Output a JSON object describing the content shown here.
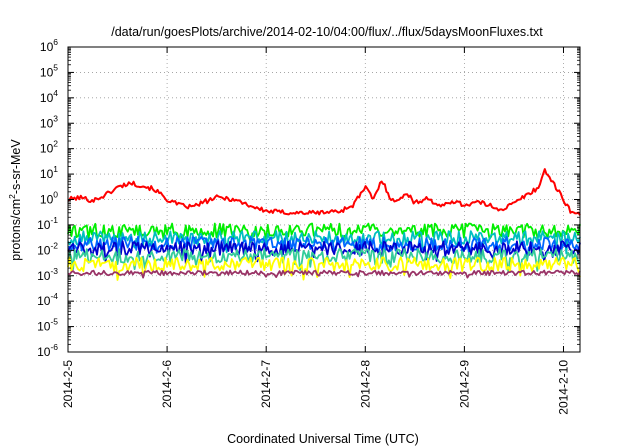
{
  "chart_data": {
    "type": "line",
    "title": "/data/run/goesPlots/archive/2014-02-10/04:00/flux/../flux/5daysMoonFluxes.txt",
    "xlabel": "Coordinated Universal Time (UTC)",
    "ylabel": "protons/cm²-s-sr-MeV",
    "ylabel_parts": {
      "before": "protons/cm",
      "sup": "2",
      "after": "-s-sr-MeV"
    },
    "yscale": "log",
    "ylim_exp": [
      -6,
      6
    ],
    "y_tick_labels": [
      {
        "base": "10",
        "exp": "-6"
      },
      {
        "base": "10",
        "exp": "-5"
      },
      {
        "base": "10",
        "exp": "-4"
      },
      {
        "base": "10",
        "exp": "-3"
      },
      {
        "base": "10",
        "exp": "-2"
      },
      {
        "base": "10",
        "exp": "-1"
      },
      {
        "base": "10",
        "exp": "0"
      },
      {
        "base": "10",
        "exp": "1"
      },
      {
        "base": "10",
        "exp": "2"
      },
      {
        "base": "10",
        "exp": "3"
      },
      {
        "base": "10",
        "exp": "4"
      },
      {
        "base": "10",
        "exp": "5"
      },
      {
        "base": "10",
        "exp": "6"
      }
    ],
    "x_ticks": [
      "2014-2-5",
      "2014-2-6",
      "2014-2-7",
      "2014-2-8",
      "2014-2-9",
      "2014-2-10"
    ],
    "xlim": [
      "2014-02-05T00:00",
      "2014-02-10T04:00"
    ],
    "grid": true,
    "series": [
      {
        "color": "#ff0000",
        "points": [
          [
            "2014-02-05T00:00",
            1.0
          ],
          [
            "2014-02-05T03:00",
            1.2
          ],
          [
            "2014-02-05T06:00",
            0.9
          ],
          [
            "2014-02-05T09:00",
            1.5
          ],
          [
            "2014-02-05T12:00",
            3.0
          ],
          [
            "2014-02-05T15:00",
            4.5
          ],
          [
            "2014-02-05T18:00",
            3.5
          ],
          [
            "2014-02-05T21:00",
            2.5
          ],
          [
            "2014-02-06T00:00",
            1.0
          ],
          [
            "2014-02-06T03:00",
            0.6
          ],
          [
            "2014-02-06T06:00",
            0.5
          ],
          [
            "2014-02-06T09:00",
            0.8
          ],
          [
            "2014-02-06T12:00",
            1.2
          ],
          [
            "2014-02-06T15:00",
            1.1
          ],
          [
            "2014-02-06T18:00",
            0.8
          ],
          [
            "2014-02-06T21:00",
            0.5
          ],
          [
            "2014-02-07T00:00",
            0.35
          ],
          [
            "2014-02-07T06:00",
            0.3
          ],
          [
            "2014-02-07T12:00",
            0.3
          ],
          [
            "2014-02-07T18:00",
            0.35
          ],
          [
            "2014-02-07T21:00",
            0.6
          ],
          [
            "2014-02-08T00:00",
            3.0
          ],
          [
            "2014-02-08T02:00",
            1.0
          ],
          [
            "2014-02-08T04:00",
            6.0
          ],
          [
            "2014-02-08T06:00",
            1.2
          ],
          [
            "2014-02-08T08:00",
            0.8
          ],
          [
            "2014-02-08T10:00",
            2.0
          ],
          [
            "2014-02-08T12:00",
            0.7
          ],
          [
            "2014-02-08T15:00",
            1.2
          ],
          [
            "2014-02-08T18:00",
            0.5
          ],
          [
            "2014-02-08T21:00",
            0.9
          ],
          [
            "2014-02-09T00:00",
            0.6
          ],
          [
            "2014-02-09T03:00",
            0.8
          ],
          [
            "2014-02-09T06:00",
            0.6
          ],
          [
            "2014-02-09T09:00",
            0.4
          ],
          [
            "2014-02-09T12:00",
            0.7
          ],
          [
            "2014-02-09T15:00",
            1.5
          ],
          [
            "2014-02-09T18:00",
            3.0
          ],
          [
            "2014-02-09T19:30",
            15.0
          ],
          [
            "2014-02-09T21:00",
            6.0
          ],
          [
            "2014-02-10T00:00",
            1.0
          ],
          [
            "2014-02-10T02:00",
            0.3
          ],
          [
            "2014-02-10T04:00",
            0.25
          ]
        ]
      },
      {
        "color": "#00ee00",
        "points": [
          [
            "2014-02-05T00:00",
            0.06
          ],
          [
            "2014-02-10T04:00",
            0.05
          ]
        ]
      },
      {
        "color": "#00bfbf",
        "points": [
          [
            "2014-02-05T00:00",
            0.03
          ],
          [
            "2014-02-10T04:00",
            0.03
          ]
        ]
      },
      {
        "color": "#0066ff",
        "points": [
          [
            "2014-02-05T00:00",
            0.018
          ],
          [
            "2014-02-10T04:00",
            0.018
          ]
        ]
      },
      {
        "color": "#0000cc",
        "points": [
          [
            "2014-02-05T00:00",
            0.012
          ],
          [
            "2014-02-10T04:00",
            0.012
          ]
        ]
      },
      {
        "color": "#33cc99",
        "points": [
          [
            "2014-02-05T00:00",
            0.006
          ],
          [
            "2014-02-10T04:00",
            0.006
          ]
        ]
      },
      {
        "color": "#ffff00",
        "points": [
          [
            "2014-02-05T00:00",
            0.0028
          ],
          [
            "2014-02-10T04:00",
            0.0028
          ]
        ]
      },
      {
        "color": "#993366",
        "points": [
          [
            "2014-02-05T00:00",
            0.0013
          ],
          [
            "2014-02-10T04:00",
            0.0013
          ]
        ]
      }
    ]
  }
}
